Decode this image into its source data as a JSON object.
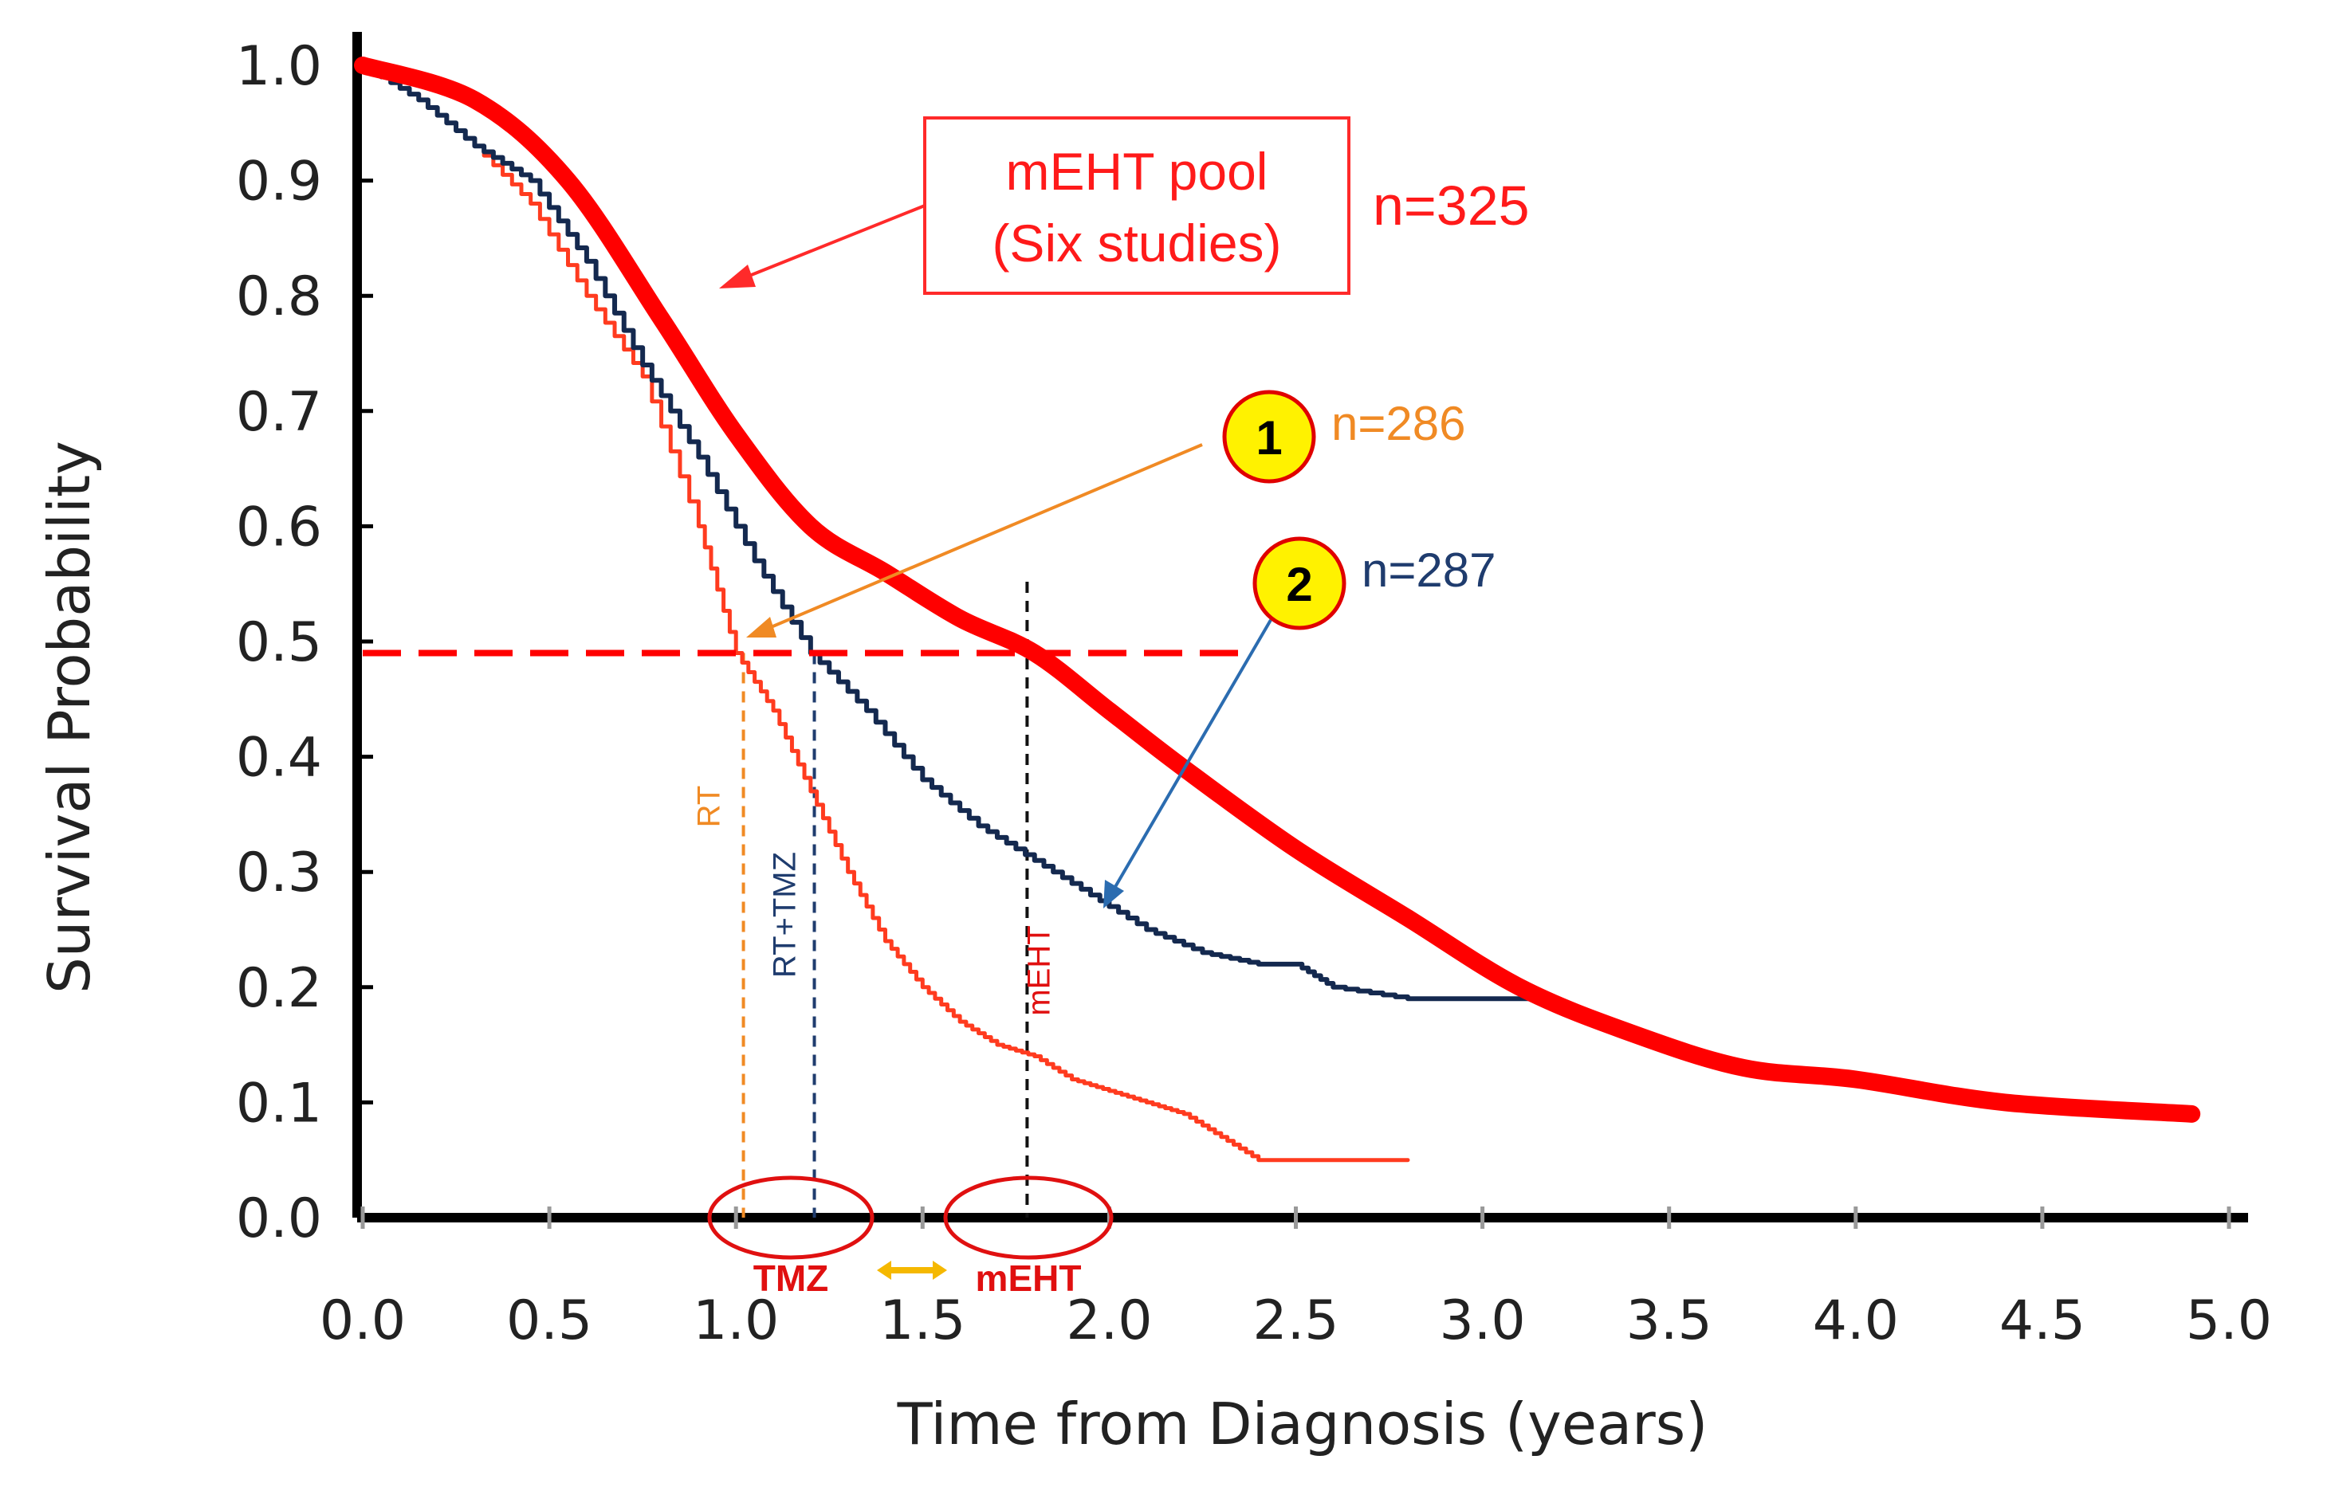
{
  "chart_data": {
    "type": "line",
    "title": "",
    "xlabel": "Time from Diagnosis  (years)",
    "ylabel": "Survival Probability",
    "xlim": [
      0,
      5
    ],
    "ylim": [
      0,
      1
    ],
    "x_ticks": [
      "0.0",
      "0.5",
      "1.0",
      "1.5",
      "2.0",
      "2.5",
      "3.0",
      "3.5",
      "4.0",
      "4.5",
      "5.0"
    ],
    "y_ticks": [
      "0.0",
      "0.1",
      "0.2",
      "0.3",
      "0.4",
      "0.5",
      "0.6",
      "0.7",
      "0.8",
      "0.9",
      "1.0"
    ],
    "median_line_y": 0.49,
    "series": [
      {
        "id": "meht",
        "color": "#ff0000",
        "x": [
          0,
          0.3,
          0.55,
          0.8,
          1.0,
          1.2,
          1.4,
          1.6,
          1.8,
          2.0,
          2.2,
          2.5,
          2.8,
          3.1,
          3.4,
          3.7,
          4.0,
          4.4,
          4.9
        ],
        "y": [
          1.0,
          0.97,
          0.9,
          0.78,
          0.68,
          0.6,
          0.56,
          0.52,
          0.49,
          0.44,
          0.39,
          0.32,
          0.26,
          0.2,
          0.16,
          0.13,
          0.12,
          0.1,
          0.09
        ]
      },
      {
        "id": "rt",
        "color": "#ff3b1f",
        "x": [
          0,
          0.15,
          0.3,
          0.45,
          0.6,
          0.75,
          0.9,
          1.0,
          1.1,
          1.2,
          1.3,
          1.4,
          1.5,
          1.6,
          1.7,
          1.8,
          1.9,
          2.0,
          2.1,
          2.2,
          2.3,
          2.4,
          2.6,
          2.8
        ],
        "y": [
          1.0,
          0.97,
          0.93,
          0.88,
          0.8,
          0.73,
          0.6,
          0.49,
          0.44,
          0.37,
          0.3,
          0.24,
          0.2,
          0.17,
          0.15,
          0.14,
          0.12,
          0.11,
          0.1,
          0.09,
          0.07,
          0.05,
          0.05,
          0.05
        ]
      },
      {
        "id": "rt_tmz",
        "color": "#14294f",
        "x": [
          0,
          0.15,
          0.3,
          0.45,
          0.6,
          0.75,
          0.9,
          1.05,
          1.2,
          1.35,
          1.5,
          1.65,
          1.8,
          1.95,
          2.1,
          2.25,
          2.4,
          2.5,
          2.6,
          2.8,
          3.0,
          3.2
        ],
        "y": [
          1.0,
          0.97,
          0.93,
          0.9,
          0.83,
          0.74,
          0.66,
          0.57,
          0.49,
          0.44,
          0.38,
          0.34,
          0.31,
          0.28,
          0.25,
          0.23,
          0.22,
          0.22,
          0.2,
          0.19,
          0.19,
          0.19
        ]
      }
    ],
    "vertical_markers": [
      {
        "x": 1.02,
        "label": "RT",
        "color": "#f08a24"
      },
      {
        "x": 1.21,
        "label": "RT+TMZ",
        "color": "#1f3c6e"
      },
      {
        "x": 1.78,
        "label": "mEHT",
        "color": "#111111"
      }
    ],
    "annotations": {
      "meht_box_line1": "mEHT pool",
      "meht_box_line2": "(Six studies)",
      "meht_n": "n=325",
      "badge1": "1",
      "badge1_n": "n=286",
      "badge2": "2",
      "badge2_n": "n=287",
      "tmz_label": "TMZ",
      "meht_period_label": "mEHT"
    }
  }
}
